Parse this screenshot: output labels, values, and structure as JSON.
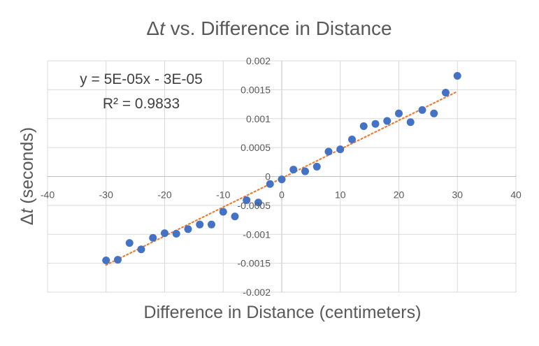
{
  "chart_data": {
    "type": "scatter",
    "title_prefix": "Δ",
    "title_var": "t",
    "title_rest": " vs. Difference in Distance",
    "xlabel": "Difference in Distance (centimeters)",
    "ylabel_prefix": "Δ",
    "ylabel_var": "t",
    "ylabel_rest": " (seconds)",
    "xlim": [
      -40,
      40
    ],
    "ylim": [
      -0.002,
      0.002
    ],
    "x_ticks": [
      "-40",
      "-30",
      "-20",
      "-10",
      "0",
      "10",
      "20",
      "30",
      "40"
    ],
    "y_ticks": [
      "0.002",
      "0.0015",
      "0.001",
      "0.0005",
      "0",
      "-0.0005",
      "-0.001",
      "-0.0015",
      "-0.002"
    ],
    "grid": true,
    "marker_color": "#4472C4",
    "trendline_color": "#ED7D31",
    "trendline": {
      "equation": "y = 5E-05x - 3E-05",
      "r_squared": "R² = 0.9833",
      "slope": 5e-05,
      "intercept": -3e-05,
      "x_range": [
        -30,
        30
      ]
    },
    "points": [
      {
        "x": -30,
        "y": -0.00145
      },
      {
        "x": -28,
        "y": -0.00144
      },
      {
        "x": -26,
        "y": -0.00115
      },
      {
        "x": -24,
        "y": -0.00126
      },
      {
        "x": -22,
        "y": -0.00106
      },
      {
        "x": -20,
        "y": -0.00098
      },
      {
        "x": -18,
        "y": -0.00099
      },
      {
        "x": -16,
        "y": -0.00091
      },
      {
        "x": -14,
        "y": -0.00083
      },
      {
        "x": -12,
        "y": -0.00083
      },
      {
        "x": -10,
        "y": -0.00061
      },
      {
        "x": -8,
        "y": -0.00069
      },
      {
        "x": -6,
        "y": -0.00041
      },
      {
        "x": -4,
        "y": -0.00045
      },
      {
        "x": -2,
        "y": -0.00013
      },
      {
        "x": 0,
        "y": -5e-05
      },
      {
        "x": 2,
        "y": 0.00012
      },
      {
        "x": 4,
        "y": 9e-05
      },
      {
        "x": 6,
        "y": 0.00017
      },
      {
        "x": 8,
        "y": 0.00043
      },
      {
        "x": 10,
        "y": 0.00047
      },
      {
        "x": 12,
        "y": 0.00064
      },
      {
        "x": 14,
        "y": 0.00087
      },
      {
        "x": 16,
        "y": 0.00091
      },
      {
        "x": 18,
        "y": 0.00096
      },
      {
        "x": 20,
        "y": 0.00109
      },
      {
        "x": 22,
        "y": 0.00094
      },
      {
        "x": 24,
        "y": 0.00115
      },
      {
        "x": 26,
        "y": 0.00109
      },
      {
        "x": 28,
        "y": 0.00145
      },
      {
        "x": 30,
        "y": 0.00174
      }
    ]
  }
}
